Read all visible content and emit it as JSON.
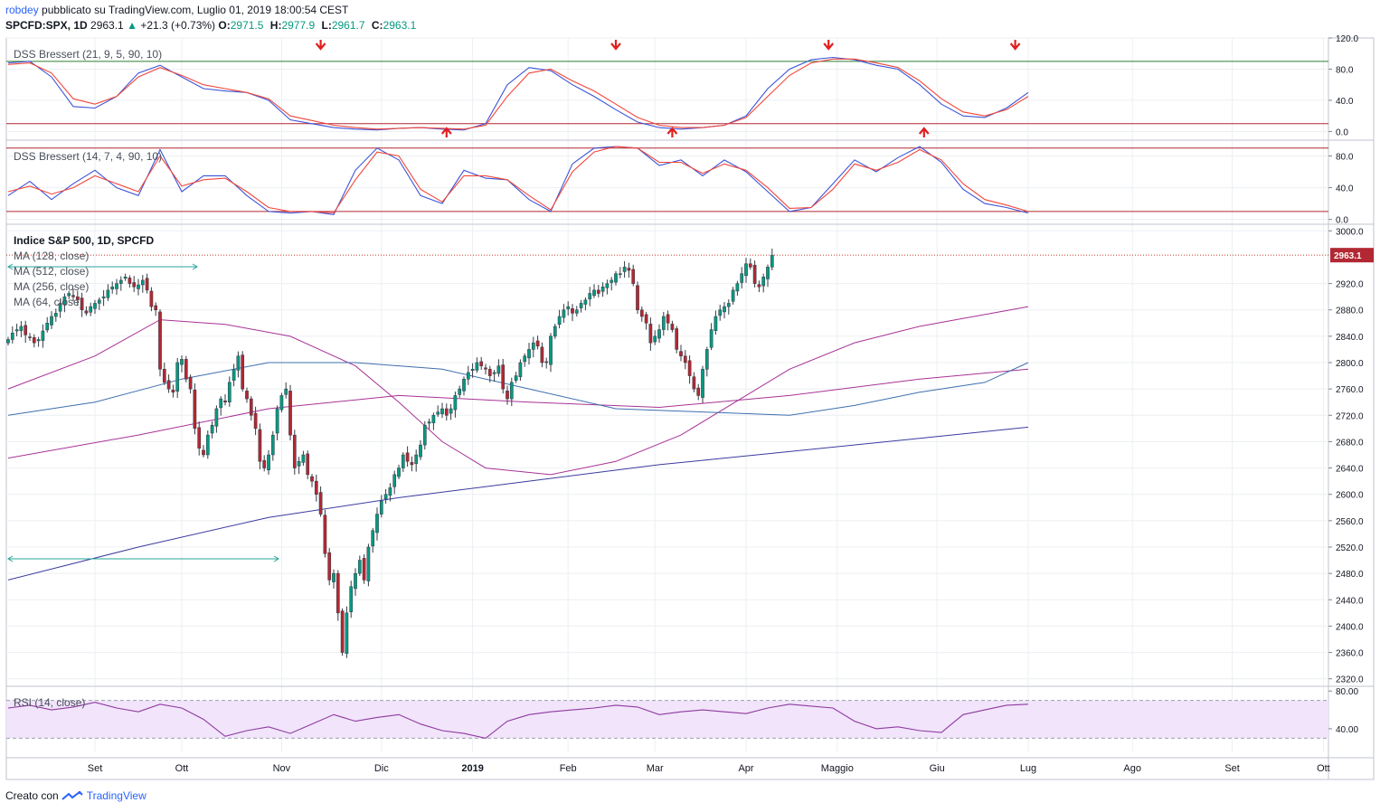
{
  "header": {
    "user": "robdey",
    "published": "pubblicato su TradingView.com, Luglio 01, 2019 18:00:54 CEST",
    "symbol": "SPCFD:SPX, 1D",
    "price": "2963.1",
    "change_arrow": "▲",
    "change": "+21.3 (+0.73%)",
    "open_label": "O:",
    "open": "2971.5",
    "high_label": "H:",
    "high": "2977.9",
    "low_label": "L:",
    "low": "2961.7",
    "close_label": "C:",
    "close": "2963.1"
  },
  "footer": {
    "prefix": "Creato con",
    "brand": "TradingView",
    "logo_icon": "tradingview-logo-icon"
  },
  "colors": {
    "up": "#089981",
    "down": "#b22833",
    "blue": "#3b54d8",
    "red": "#f2463a",
    "ma128": "#a83296",
    "ma512": "#3b3ba0",
    "ma256": "#a83296",
    "ma64": "#3e6fae",
    "rsi": "#8e3a9e",
    "rsi_band": "#f1e4fb"
  },
  "chart_data": [
    {
      "type": "line",
      "title": "DSS Bressert (21, 9, 5, 90, 10)",
      "ylim": [
        -10,
        120
      ],
      "yticks": [
        "120.0",
        "80.0",
        "40.0",
        "0.0"
      ],
      "levels": [
        90,
        10
      ],
      "series": [
        {
          "name": "",
          "color": "#3b54d8",
          "x": [
            0,
            5,
            10,
            15,
            20,
            25,
            30,
            35,
            40,
            45,
            50,
            55,
            60,
            65,
            70,
            75,
            80,
            85,
            90,
            95,
            100,
            105,
            110,
            115,
            120,
            125,
            130,
            135,
            140,
            145,
            150,
            155,
            160,
            165,
            170,
            175,
            180,
            185,
            190,
            195,
            200,
            205,
            210,
            215,
            220,
            225,
            230,
            235
          ],
          "values": [
            88,
            90,
            70,
            32,
            30,
            45,
            75,
            85,
            70,
            55,
            52,
            50,
            40,
            15,
            10,
            5,
            3,
            2,
            4,
            5,
            3,
            2,
            10,
            60,
            82,
            78,
            60,
            45,
            28,
            12,
            5,
            3,
            5,
            8,
            20,
            55,
            80,
            92,
            95,
            92,
            85,
            80,
            60,
            35,
            20,
            18,
            30,
            50
          ]
        },
        {
          "name": "",
          "color": "#f2463a",
          "x": [
            0,
            5,
            10,
            15,
            20,
            25,
            30,
            35,
            40,
            45,
            50,
            55,
            60,
            65,
            70,
            75,
            80,
            85,
            90,
            95,
            100,
            105,
            110,
            115,
            120,
            125,
            130,
            135,
            140,
            145,
            150,
            155,
            160,
            165,
            170,
            175,
            180,
            185,
            190,
            195,
            200,
            205,
            210,
            215,
            220,
            225,
            230,
            235
          ],
          "values": [
            86,
            88,
            75,
            42,
            35,
            45,
            70,
            82,
            72,
            60,
            55,
            50,
            42,
            20,
            14,
            8,
            5,
            3,
            4,
            5,
            4,
            3,
            8,
            45,
            75,
            80,
            65,
            52,
            35,
            18,
            8,
            5,
            5,
            8,
            18,
            45,
            72,
            88,
            93,
            93,
            88,
            82,
            65,
            42,
            25,
            20,
            28,
            45
          ]
        }
      ]
    },
    {
      "type": "line",
      "title": "DSS Bressert (14, 7, 4, 90, 10)",
      "ylim": [
        -5,
        100
      ],
      "yticks": [
        "80.0",
        "40.0",
        "0.0"
      ],
      "levels": [
        90,
        10
      ],
      "series": [
        {
          "name": "",
          "color": "#3b54d8",
          "x": [
            0,
            5,
            10,
            15,
            20,
            25,
            30,
            35,
            40,
            45,
            50,
            55,
            60,
            65,
            70,
            75,
            80,
            85,
            90,
            95,
            100,
            105,
            110,
            115,
            120,
            125,
            130,
            135,
            140,
            145,
            150,
            155,
            160,
            165,
            170,
            175,
            180,
            185,
            190,
            195,
            200,
            205,
            210,
            215,
            220,
            225,
            230,
            235
          ],
          "values": [
            30,
            48,
            25,
            45,
            62,
            40,
            30,
            88,
            35,
            55,
            55,
            30,
            10,
            8,
            10,
            6,
            62,
            90,
            75,
            30,
            20,
            62,
            52,
            50,
            25,
            10,
            70,
            90,
            92,
            90,
            68,
            75,
            55,
            75,
            60,
            35,
            10,
            15,
            45,
            75,
            60,
            78,
            92,
            72,
            38,
            20,
            15,
            8
          ]
        },
        {
          "name": "",
          "color": "#f2463a",
          "x": [
            0,
            5,
            10,
            15,
            20,
            25,
            30,
            35,
            40,
            45,
            50,
            55,
            60,
            65,
            70,
            75,
            80,
            85,
            90,
            95,
            100,
            105,
            110,
            115,
            120,
            125,
            130,
            135,
            140,
            145,
            150,
            155,
            160,
            165,
            170,
            175,
            180,
            185,
            190,
            195,
            200,
            205,
            210,
            215,
            220,
            225,
            230,
            235
          ],
          "values": [
            35,
            42,
            32,
            40,
            55,
            45,
            35,
            80,
            42,
            50,
            52,
            35,
            15,
            10,
            10,
            8,
            50,
            85,
            80,
            38,
            22,
            55,
            55,
            50,
            30,
            12,
            60,
            85,
            92,
            90,
            72,
            72,
            58,
            70,
            62,
            40,
            14,
            15,
            38,
            70,
            62,
            72,
            88,
            75,
            45,
            25,
            18,
            10
          ]
        }
      ]
    },
    {
      "type": "candlestick",
      "title": "Indice S&P 500, 1D, SPCFD",
      "ylim": [
        2310,
        3010
      ],
      "yticks": [
        "3000.0",
        "2920.0",
        "2880.0",
        "2840.0",
        "2800.0",
        "2760.0",
        "2720.0",
        "2680.0",
        "2640.0",
        "2600.0",
        "2560.0",
        "2520.0",
        "2480.0",
        "2440.0",
        "2400.0",
        "2360.0",
        "2320.0"
      ],
      "last_label": "2963.1",
      "legend": [
        "MA (128, close)",
        "MA (512, close)",
        "MA (256, close)",
        "MA (64, close)"
      ],
      "x_labels": [
        "Set",
        "Ott",
        "Nov",
        "Dic",
        "2019",
        "Feb",
        "Mar",
        "Apr",
        "Maggio",
        "Giu",
        "Lug",
        "Ago",
        "Set",
        "Ott"
      ],
      "x_label_days": [
        20,
        40,
        63,
        86,
        107,
        129,
        149,
        170,
        191,
        214,
        235,
        259,
        282,
        303
      ],
      "closes": [
        2835,
        2845,
        2850,
        2855,
        2842,
        2838,
        2830,
        2835,
        2848,
        2860,
        2870,
        2875,
        2890,
        2900,
        2905,
        2900,
        2895,
        2880,
        2875,
        2885,
        2890,
        2895,
        2900,
        2910,
        2915,
        2920,
        2925,
        2930,
        2920,
        2915,
        2918,
        2925,
        2910,
        2885,
        2880,
        2790,
        2770,
        2760,
        2755,
        2800,
        2805,
        2775,
        2760,
        2700,
        2670,
        2660,
        2690,
        2705,
        2730,
        2745,
        2740,
        2770,
        2790,
        2810,
        2760,
        2745,
        2720,
        2700,
        2650,
        2640,
        2660,
        2690,
        2730,
        2750,
        2760,
        2690,
        2640,
        2650,
        2660,
        2630,
        2620,
        2600,
        2570,
        2510,
        2470,
        2480,
        2420,
        2360,
        2420,
        2460,
        2480,
        2500,
        2470,
        2520,
        2545,
        2570,
        2590,
        2600,
        2610,
        2630,
        2640,
        2660,
        2650,
        2645,
        2660,
        2675,
        2705,
        2710,
        2720,
        2725,
        2730,
        2720,
        2730,
        2750,
        2760,
        2775,
        2785,
        2790,
        2800,
        2795,
        2790,
        2780,
        2785,
        2795,
        2760,
        2745,
        2770,
        2780,
        2800,
        2810,
        2820,
        2830,
        2825,
        2800,
        2800,
        2840,
        2855,
        2870,
        2880,
        2885,
        2875,
        2880,
        2890,
        2895,
        2905,
        2910,
        2905,
        2915,
        2920,
        2925,
        2935,
        2935,
        2945,
        2940,
        2920,
        2880,
        2870,
        2860,
        2830,
        2840,
        2850,
        2870,
        2860,
        2850,
        2820,
        2810,
        2800,
        2780,
        2760,
        2750,
        2790,
        2820,
        2850,
        2870,
        2880,
        2885,
        2890,
        2910,
        2920,
        2935,
        2950,
        2945,
        2920,
        2915,
        2930,
        2945,
        2963.1
      ],
      "ma": [
        {
          "name": "MA (128, close)",
          "color": "#a83296",
          "x": [
            0,
            20,
            35,
            50,
            65,
            80,
            90,
            100,
            110,
            125,
            140,
            155,
            170,
            180,
            195,
            210,
            235
          ],
          "values": [
            2760,
            2810,
            2865,
            2858,
            2840,
            2795,
            2740,
            2680,
            2640,
            2630,
            2650,
            2690,
            2750,
            2790,
            2830,
            2855,
            2885
          ]
        },
        {
          "name": "MA (512, close)",
          "color": "#3b3ba0",
          "x": [
            0,
            30,
            60,
            90,
            120,
            150,
            180,
            210,
            235
          ],
          "values": [
            2470,
            2520,
            2565,
            2595,
            2620,
            2645,
            2665,
            2685,
            2702
          ]
        },
        {
          "name": "MA (256, close)",
          "color": "#a83296",
          "x": [
            0,
            30,
            60,
            90,
            120,
            150,
            180,
            210,
            235
          ],
          "values": [
            2655,
            2690,
            2730,
            2750,
            2740,
            2732,
            2750,
            2775,
            2790
          ]
        },
        {
          "name": "MA (64, close)",
          "color": "#3e6fae",
          "x": [
            0,
            20,
            40,
            60,
            80,
            100,
            120,
            140,
            160,
            180,
            195,
            210,
            225,
            235
          ],
          "values": [
            2720,
            2740,
            2775,
            2800,
            2800,
            2790,
            2760,
            2730,
            2725,
            2720,
            2735,
            2755,
            2770,
            2800
          ]
        }
      ]
    },
    {
      "type": "line",
      "title": "RSI (14, close)",
      "ylim": [
        15,
        85
      ],
      "yticks": [
        "80.00",
        "40.00"
      ],
      "levels": [
        70,
        30
      ],
      "series": [
        {
          "name": "",
          "color": "#8e3a9e",
          "x": [
            0,
            5,
            10,
            15,
            20,
            25,
            30,
            35,
            40,
            45,
            50,
            55,
            60,
            65,
            70,
            75,
            80,
            85,
            90,
            95,
            100,
            105,
            110,
            115,
            120,
            125,
            130,
            135,
            140,
            145,
            150,
            155,
            160,
            165,
            170,
            175,
            180,
            185,
            190,
            195,
            200,
            205,
            210,
            215,
            220,
            225,
            230,
            235
          ],
          "values": [
            62,
            65,
            60,
            63,
            68,
            62,
            58,
            66,
            62,
            50,
            32,
            38,
            42,
            35,
            45,
            55,
            48,
            52,
            55,
            45,
            38,
            35,
            30,
            48,
            55,
            58,
            60,
            62,
            65,
            63,
            55,
            58,
            60,
            58,
            56,
            62,
            66,
            64,
            62,
            48,
            40,
            42,
            38,
            36,
            55,
            60,
            65,
            66
          ]
        }
      ]
    }
  ]
}
